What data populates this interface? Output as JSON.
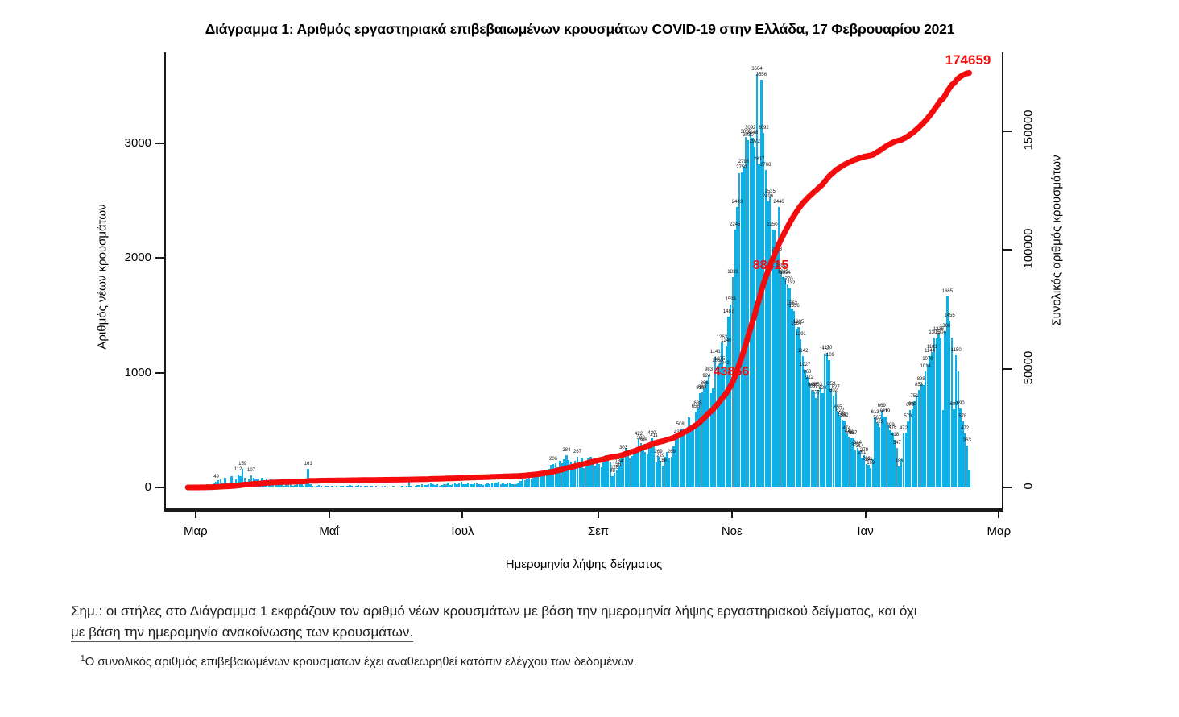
{
  "title": "Διάγραμμα 1: Αριθμός εργαστηριακά επιβεβαιωμένων κρουσμάτων COVID-19 στην Ελλάδα, 17 Φεβρουαρίου 2021",
  "chart_data": {
    "type": "bar",
    "bar_series": {
      "name": "Αριθμός νέων κρουσμάτων",
      "color": "#0fb0e6",
      "values": [
        2,
        2,
        0,
        2,
        7,
        3,
        4,
        10,
        21,
        31,
        17,
        21,
        35,
        49,
        60,
        71,
        35,
        83,
        35,
        39,
        99,
        31,
        71,
        112,
        95,
        159,
        86,
        48,
        71,
        107,
        84,
        68,
        71,
        46,
        82,
        60,
        79,
        56,
        69,
        60,
        62,
        32,
        52,
        47,
        12,
        31,
        44,
        25,
        15,
        22,
        28,
        26,
        55,
        16,
        56,
        161,
        31,
        15,
        10,
        16,
        23,
        17,
        10,
        11,
        12,
        6,
        12,
        10,
        15,
        7,
        11,
        17,
        10,
        14,
        24,
        15,
        9,
        14,
        21,
        11,
        10,
        12,
        15,
        8,
        13,
        5,
        12,
        9,
        10,
        11,
        13,
        10,
        7,
        9,
        12,
        8,
        4,
        8,
        12,
        10,
        15,
        52,
        12,
        8,
        14,
        20,
        24,
        28,
        19,
        23,
        31,
        43,
        28,
        23,
        27,
        16,
        24,
        30,
        28,
        43,
        21,
        29,
        33,
        27,
        42,
        50,
        28,
        31,
        43,
        25,
        29,
        40,
        33,
        28,
        31,
        24,
        29,
        32,
        27,
        35,
        33,
        39,
        47,
        31,
        35,
        26,
        36,
        32,
        28,
        30,
        27,
        33,
        58,
        77,
        65,
        78,
        110,
        75,
        98,
        102,
        121,
        124,
        128,
        151,
        145,
        160,
        196,
        206,
        212,
        177,
        230,
        208,
        246,
        284,
        242,
        225,
        207,
        230,
        267,
        226,
        251,
        168,
        228,
        258,
        270,
        233,
        192,
        236,
        207,
        178,
        241,
        283,
        262,
        226,
        98,
        126,
        156,
        184,
        254,
        303,
        342,
        310,
        255,
        276,
        312,
        342,
        422,
        388,
        366,
        312,
        287,
        344,
        430,
        411,
        218,
        269,
        229,
        188,
        269,
        312,
        256,
        269,
        358,
        434,
        436,
        508,
        513,
        497,
        472,
        613,
        508,
        549,
        658,
        688,
        819,
        830,
        866,
        924,
        983,
        819,
        863,
        1141,
        1060,
        1075,
        1263,
        1043,
        1240,
        1487,
        1594,
        1833,
        2245,
        2443,
        2743,
        2750,
        2798,
        3055,
        3030,
        3092,
        3048,
        2972,
        3604,
        2817,
        3556,
        3092,
        2768,
        2496,
        2535,
        2250,
        2246,
        2028,
        2446,
        1891,
        1835,
        1824,
        1770,
        1732,
        1563,
        1536,
        1384,
        1395,
        1291,
        1142,
        1027,
        960,
        912,
        848,
        837,
        777,
        853,
        863,
        824,
        1158,
        1170,
        1109,
        859,
        802,
        827,
        655,
        622,
        589,
        582,
        474,
        442,
        426,
        427,
        323,
        344,
        314,
        261,
        279,
        202,
        194,
        169,
        244,
        613,
        565,
        529,
        669,
        621,
        619,
        547,
        499,
        476,
        418,
        347,
        183,
        244,
        472,
        476,
        578,
        673,
        680,
        751,
        802,
        853,
        898,
        893,
        1014,
        1076,
        1144,
        1183,
        1305,
        1300,
        1336,
        1304,
        673,
        1366,
        1665,
        1455,
        1304,
        680,
        1150,
        1014,
        690,
        578,
        472,
        363,
        150
      ]
    },
    "line_series": {
      "name": "Συνολικός αριθμός κρουσμάτων",
      "color": "#f40b0b",
      "final_value": 174659
    },
    "labeled_indices": [
      13,
      23,
      25,
      29,
      55,
      167,
      173,
      178,
      194,
      195,
      196,
      197,
      199,
      206,
      207,
      208,
      212,
      213,
      215,
      216,
      217,
      221,
      224,
      225,
      232,
      233,
      234,
      235,
      236,
      237,
      238,
      241,
      242,
      243,
      244,
      245,
      246,
      247,
      248,
      249,
      250,
      251,
      253,
      254,
      255,
      256,
      257,
      258,
      259,
      260,
      261,
      262,
      263,
      264,
      265,
      266,
      267,
      269,
      270,
      271,
      272,
      273,
      274,
      275,
      276,
      277,
      278,
      279,
      280,
      281,
      282,
      283,
      284,
      285,
      286,
      287,
      288,
      290,
      291,
      292,
      293,
      294,
      295,
      296,
      297,
      298,
      299,
      300,
      301,
      302,
      303,
      304,
      305,
      306,
      307,
      308,
      309,
      310,
      311,
      312,
      314,
      315,
      316,
      317,
      318,
      319,
      321,
      322,
      323,
      324,
      325,
      327,
      329,
      330,
      331,
      332,
      334,
      335,
      337,
      338,
      339,
      340,
      341,
      343,
      344,
      346,
      347,
      348,
      350,
      351,
      353,
      354,
      355,
      356
    ],
    "left_axis": {
      "label": "Αριθμός νέων κρουσμάτων",
      "ticks": [
        0,
        1000,
        2000,
        3000
      ],
      "range": [
        0,
        3604
      ]
    },
    "right_axis": {
      "label": "Συνολικός αριθμός κρουσμάτων",
      "ticks": [
        0,
        50000,
        100000,
        150000
      ],
      "range": [
        0,
        174659
      ]
    },
    "x_tick_labels": [
      "Μαρ",
      "Μαΐ",
      "Ιουλ",
      "Σεπ",
      "Νοε",
      "Ιαν",
      "Μαρ"
    ],
    "xlabel": "Ημερομηνία λήψης δείγματος",
    "grid": false,
    "legend": "none",
    "annotations": [
      {
        "id": "total-latest",
        "text": "174659"
      },
      {
        "id": "milestone-high",
        "text": "88415"
      },
      {
        "id": "milestone-low",
        "text": "43856"
      }
    ]
  },
  "notes": {
    "line1": "Σημ.: οι στήλες στο Διάγραμμα 1 εκφράζουν τον αριθμό νέων κρουσμάτων με βάση την ημερομηνία λήψης εργαστηριακού δείγματος, και όχι",
    "line2": "με βάση την ημερομηνία ανακοίνωσης των κρουσμάτων.",
    "footnote_marker": "1",
    "footnote_text": "Ο συνολικός αριθμός επιβεβαιωμένων κρουσμάτων έχει αναθεωρηθεί κατόπιν ελέγχου των δεδομένων."
  }
}
